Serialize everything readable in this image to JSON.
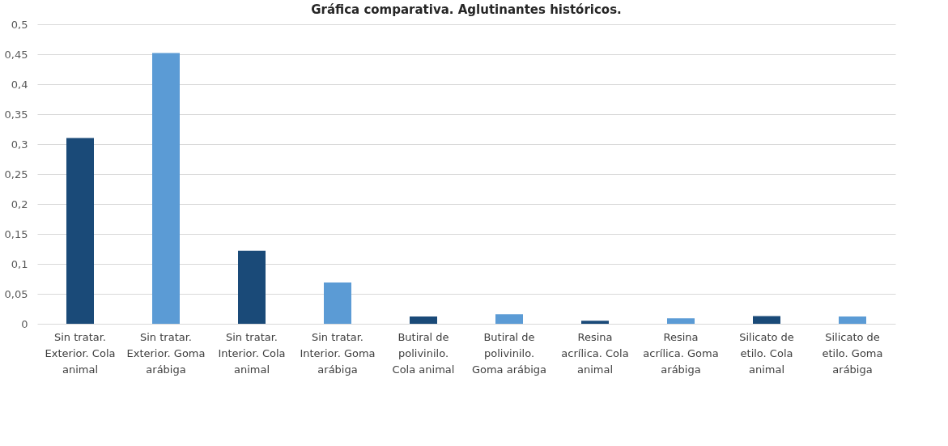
{
  "chart_data": {
    "type": "bar",
    "title": "Gráfica comparativa. Aglutinantes históricos.",
    "categories": [
      "Sin tratar. Exterior. Cola animal",
      "Sin tratar. Exterior. Goma arábiga",
      "Sin tratar. Interior. Cola animal",
      "Sin tratar. Interior. Goma arábiga",
      "Butiral de polivinilo. Cola animal",
      "Butiral de polivinilo. Goma arábiga",
      "Resina acrílica. Cola animal",
      "Resina acrílica. Goma arábiga",
      "Silicato de etilo. Cola animal",
      "Silicato de etilo. Goma arábiga"
    ],
    "values": [
      0.31,
      0.452,
      0.122,
      0.069,
      0.012,
      0.016,
      0.005,
      0.009,
      0.013,
      0.012
    ],
    "colors": [
      "#1a4a78",
      "#5b9bd5",
      "#1a4a78",
      "#5b9bd5",
      "#1a4a78",
      "#5b9bd5",
      "#1a4a78",
      "#5b9bd5",
      "#1a4a78",
      "#5b9bd5"
    ],
    "ylim": [
      0,
      0.5
    ],
    "yticks": [
      {
        "value": 0,
        "label": "0"
      },
      {
        "value": 0.05,
        "label": "0,05"
      },
      {
        "value": 0.1,
        "label": "0,1"
      },
      {
        "value": 0.15,
        "label": "0,15"
      },
      {
        "value": 0.2,
        "label": "0,2"
      },
      {
        "value": 0.25,
        "label": "0,25"
      },
      {
        "value": 0.3,
        "label": "0,3"
      },
      {
        "value": 0.35,
        "label": "0,35"
      },
      {
        "value": 0.4,
        "label": "0,4"
      },
      {
        "value": 0.45,
        "label": "0,45"
      },
      {
        "value": 0.5,
        "label": "0,5"
      }
    ],
    "grid": "y"
  }
}
